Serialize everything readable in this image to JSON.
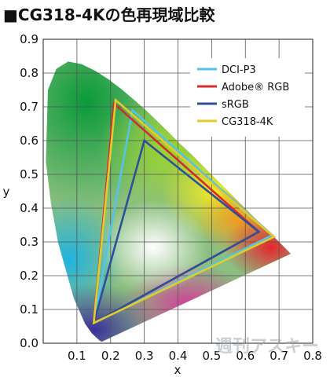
{
  "title": "■CG318-4Kの色再現域比較",
  "watermark": "週刊アスキー",
  "chart_data": {
    "type": "scatter",
    "xlabel": "x",
    "ylabel": "y",
    "xlim": [
      0,
      0.8
    ],
    "ylim": [
      0,
      0.9
    ],
    "x_ticks": [
      "0.1",
      "0.2",
      "0.3",
      "0.4",
      "0.5",
      "0.6",
      "0.7",
      "0.8"
    ],
    "y_ticks": [
      "0.0",
      "0.1",
      "0.2",
      "0.3",
      "0.4",
      "0.5",
      "0.6",
      "0.7",
      "0.8",
      "0.9"
    ],
    "grid": true,
    "legend_position": "top-right",
    "spectral_locus": [
      [
        0.175,
        0.005
      ],
      [
        0.172,
        0.005
      ],
      [
        0.166,
        0.009
      ],
      [
        0.144,
        0.03
      ],
      [
        0.124,
        0.058
      ],
      [
        0.091,
        0.133
      ],
      [
        0.045,
        0.295
      ],
      [
        0.023,
        0.413
      ],
      [
        0.008,
        0.538
      ],
      [
        0.014,
        0.75
      ],
      [
        0.039,
        0.812
      ],
      [
        0.074,
        0.834
      ],
      [
        0.114,
        0.826
      ],
      [
        0.155,
        0.806
      ],
      [
        0.193,
        0.782
      ],
      [
        0.23,
        0.754
      ],
      [
        0.266,
        0.724
      ],
      [
        0.302,
        0.692
      ],
      [
        0.337,
        0.659
      ],
      [
        0.373,
        0.624
      ],
      [
        0.408,
        0.589
      ],
      [
        0.444,
        0.555
      ],
      [
        0.479,
        0.52
      ],
      [
        0.512,
        0.487
      ],
      [
        0.544,
        0.455
      ],
      [
        0.575,
        0.424
      ],
      [
        0.603,
        0.396
      ],
      [
        0.627,
        0.372
      ],
      [
        0.648,
        0.351
      ],
      [
        0.666,
        0.334
      ],
      [
        0.68,
        0.32
      ],
      [
        0.691,
        0.309
      ],
      [
        0.735,
        0.265
      ],
      [
        0.175,
        0.005
      ]
    ],
    "series": [
      {
        "name": "DCI-P3",
        "color": "#55c3e6",
        "points": [
          [
            0.68,
            0.32
          ],
          [
            0.265,
            0.69
          ],
          [
            0.15,
            0.06
          ]
        ]
      },
      {
        "name": "Adobe® RGB",
        "color": "#d42b2f",
        "points": [
          [
            0.64,
            0.33
          ],
          [
            0.21,
            0.71
          ],
          [
            0.15,
            0.06
          ]
        ]
      },
      {
        "name": "sRGB",
        "color": "#2f4f9a",
        "points": [
          [
            0.64,
            0.33
          ],
          [
            0.3,
            0.6
          ],
          [
            0.15,
            0.06
          ]
        ]
      },
      {
        "name": "CG318-4K",
        "color": "#e3cc2a",
        "points": [
          [
            0.685,
            0.315
          ],
          [
            0.215,
            0.72
          ],
          [
            0.15,
            0.06
          ]
        ]
      }
    ]
  }
}
